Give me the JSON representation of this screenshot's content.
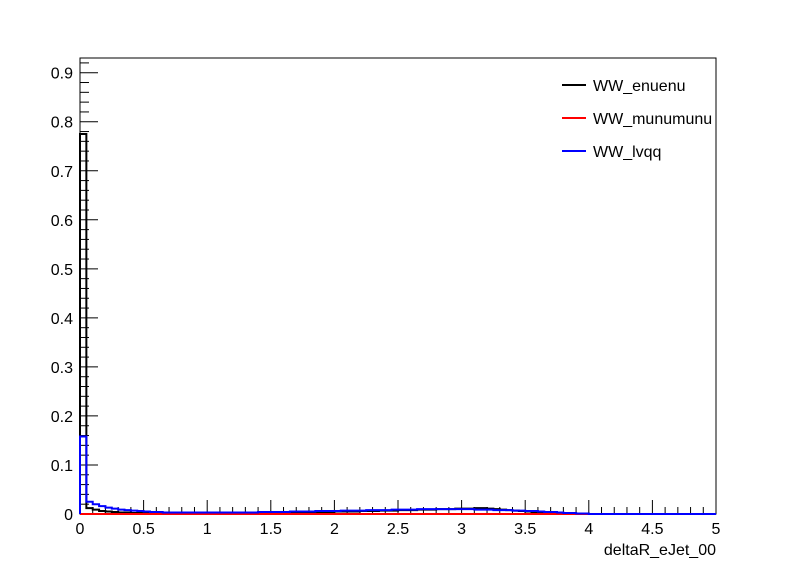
{
  "chart_data": {
    "type": "line",
    "style": "step-histogram",
    "xlabel": "deltaR_eJet_00",
    "ylabel": "",
    "xlim": [
      0,
      5
    ],
    "ylim": [
      0,
      0.93
    ],
    "x_ticks": [
      "0",
      "0.5",
      "1",
      "1.5",
      "2",
      "2.5",
      "3",
      "3.5",
      "4",
      "4.5",
      "5"
    ],
    "y_ticks": [
      "0",
      "0.1",
      "0.2",
      "0.3",
      "0.4",
      "0.5",
      "0.6",
      "0.7",
      "0.8",
      "0.9"
    ],
    "grid": false,
    "legend_position": "top-right",
    "bin_width": 0.05,
    "series": [
      {
        "name": "WW_enuenu",
        "color": "#000000",
        "values": [
          0.775,
          0.012,
          0.009,
          0.006,
          0.005,
          0.004,
          0.003,
          0.003,
          0.002,
          0.002,
          0.002,
          0.002,
          0.002,
          0.002,
          0.002,
          0.002,
          0.002,
          0.002,
          0.002,
          0.002,
          0.002,
          0.002,
          0.002,
          0.002,
          0.002,
          0.002,
          0.002,
          0.002,
          0.003,
          0.003,
          0.003,
          0.003,
          0.003,
          0.003,
          0.003,
          0.004,
          0.004,
          0.004,
          0.004,
          0.004,
          0.005,
          0.005,
          0.005,
          0.005,
          0.006,
          0.006,
          0.006,
          0.007,
          0.007,
          0.007,
          0.008,
          0.008,
          0.008,
          0.009,
          0.009,
          0.009,
          0.01,
          0.01,
          0.01,
          0.011,
          0.011,
          0.011,
          0.012,
          0.012,
          0.011,
          0.01,
          0.009,
          0.008,
          0.007,
          0.006,
          0.005,
          0.004,
          0.003,
          0.002,
          0.002,
          0.001,
          0.001,
          0.001,
          0.0,
          0.0,
          0.0,
          0.0,
          0.0,
          0.0,
          0.0,
          0.0,
          0.0,
          0.0,
          0.0,
          0.0,
          0.0,
          0.0,
          0.0,
          0.0,
          0.0,
          0.0,
          0.0,
          0.0,
          0.0,
          0.0
        ]
      },
      {
        "name": "WW_munumunu",
        "color": "#ff0000",
        "values": [
          0.0,
          0.0,
          0.0,
          0.0,
          0.0,
          0.0,
          0.0,
          0.0,
          0.0,
          0.0,
          0.0,
          0.0,
          0.0,
          0.0,
          0.0,
          0.0,
          0.0,
          0.0,
          0.0,
          0.0,
          0.0,
          0.0,
          0.0,
          0.0,
          0.0,
          0.0,
          0.0,
          0.0,
          0.0,
          0.0,
          0.0,
          0.0,
          0.0,
          0.0,
          0.0,
          0.0,
          0.0,
          0.0,
          0.0,
          0.0,
          0.0,
          0.0,
          0.0,
          0.0,
          0.0,
          0.0,
          0.0,
          0.0,
          0.0,
          0.0,
          0.0,
          0.0,
          0.0,
          0.0,
          0.0,
          0.0,
          0.0,
          0.0,
          0.0,
          0.0,
          0.0,
          0.0,
          0.0,
          0.0,
          0.0,
          0.0,
          0.0,
          0.0,
          0.0,
          0.0,
          0.0,
          0.0,
          0.0,
          0.0,
          0.0,
          0.0,
          0.0,
          0.0,
          0.0,
          0.0,
          0.0,
          0.0,
          0.0,
          0.0,
          0.0,
          0.0,
          0.0,
          0.0,
          0.0,
          0.0,
          0.0,
          0.0,
          0.0,
          0.0,
          0.0,
          0.0,
          0.0,
          0.0,
          0.0,
          0.0
        ]
      },
      {
        "name": "WW_lvqq",
        "color": "#0000ff",
        "values": [
          0.158,
          0.025,
          0.02,
          0.016,
          0.013,
          0.011,
          0.009,
          0.008,
          0.007,
          0.006,
          0.005,
          0.004,
          0.004,
          0.003,
          0.003,
          0.003,
          0.003,
          0.003,
          0.003,
          0.003,
          0.003,
          0.003,
          0.003,
          0.003,
          0.003,
          0.003,
          0.003,
          0.003,
          0.004,
          0.004,
          0.004,
          0.004,
          0.004,
          0.005,
          0.005,
          0.005,
          0.005,
          0.006,
          0.006,
          0.006,
          0.006,
          0.007,
          0.007,
          0.007,
          0.007,
          0.008,
          0.008,
          0.008,
          0.008,
          0.009,
          0.009,
          0.009,
          0.009,
          0.01,
          0.01,
          0.01,
          0.01,
          0.01,
          0.01,
          0.01,
          0.01,
          0.01,
          0.009,
          0.009,
          0.009,
          0.008,
          0.008,
          0.008,
          0.007,
          0.007,
          0.006,
          0.006,
          0.005,
          0.004,
          0.004,
          0.003,
          0.002,
          0.002,
          0.001,
          0.001,
          0.0,
          0.0,
          0.0,
          0.0,
          0.0,
          0.0,
          0.0,
          0.0,
          0.0,
          0.0,
          0.0,
          0.0,
          0.0,
          0.0,
          0.0,
          0.0,
          0.0,
          0.0,
          0.0,
          0.0
        ]
      }
    ]
  }
}
